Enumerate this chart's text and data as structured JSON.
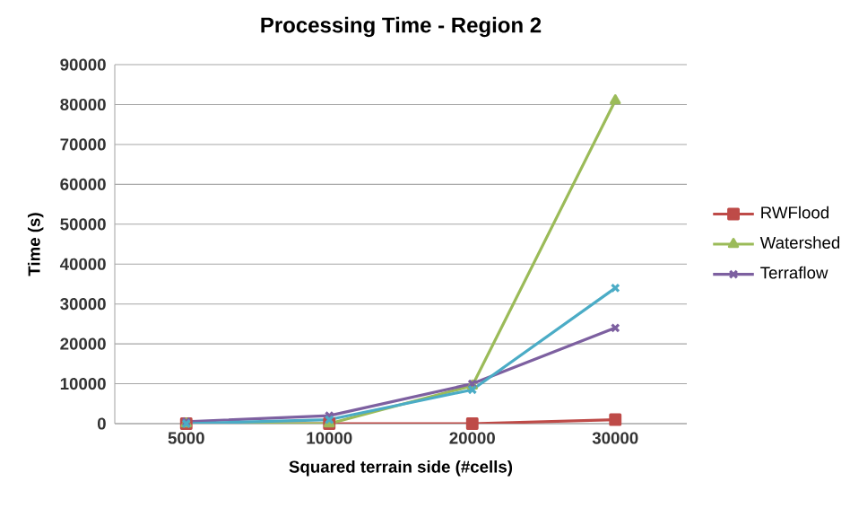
{
  "chart_data": {
    "type": "line",
    "title": "Processing Time - Region 2",
    "xlabel": "Squared terrain side (#cells)",
    "ylabel": "Time (s)",
    "categories": [
      "5000",
      "10000",
      "20000",
      "30000"
    ],
    "series": [
      {
        "name": "RWFlood",
        "color": "#be4b48",
        "marker": "square",
        "values": [
          0,
          0,
          0,
          1000
        ]
      },
      {
        "name": "Watershed",
        "color": "#9bbb59",
        "marker": "triangle",
        "values": [
          0,
          0,
          9500,
          81000
        ]
      },
      {
        "name": "Terraflow",
        "color": "#7d60a0",
        "marker": "cross",
        "values": [
          500,
          2000,
          10000,
          24000
        ]
      },
      {
        "color": "#4bacc6",
        "marker": "cross",
        "values": [
          0,
          1000,
          8500,
          34000
        ]
      }
    ],
    "ylim": [
      0,
      90000
    ],
    "yticks": [
      0,
      10000,
      20000,
      30000,
      40000,
      50000,
      60000,
      70000,
      80000,
      90000
    ],
    "grid": "y",
    "legend": "right"
  }
}
